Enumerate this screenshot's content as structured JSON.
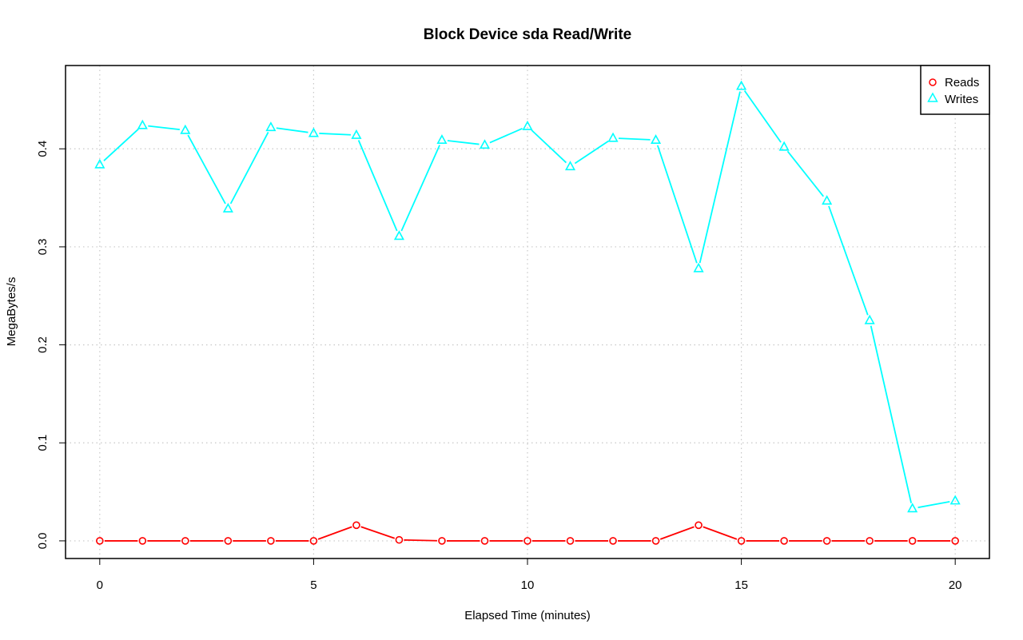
{
  "chart_data": {
    "type": "line",
    "title": "Block Device sda Read/Write",
    "xlabel": "Elapsed Time (minutes)",
    "ylabel": "MegaBytes/s",
    "xlim": [
      -0.8,
      20.8
    ],
    "ylim": [
      -0.018,
      0.485
    ],
    "xticks": [
      0,
      5,
      10,
      15,
      20
    ],
    "yticks": [
      0.0,
      0.1,
      0.2,
      0.3,
      0.4
    ],
    "ytick_labels": [
      "0.0",
      "0.1",
      "0.2",
      "0.3",
      "0.4"
    ],
    "grid": true,
    "legend_position": "top-right",
    "x": [
      0,
      1,
      2,
      3,
      4,
      5,
      6,
      7,
      8,
      9,
      10,
      11,
      12,
      13,
      14,
      15,
      16,
      17,
      18,
      19,
      20
    ],
    "series": [
      {
        "name": "Reads",
        "color": "#ff0000",
        "marker": "circle",
        "values": [
          0.0,
          0.0,
          0.0,
          0.0,
          0.0,
          0.0,
          0.016,
          0.001,
          0.0,
          0.0,
          0.0,
          0.0,
          0.0,
          0.0,
          0.016,
          0.0,
          0.0,
          0.0,
          0.0,
          0.0,
          0.0
        ]
      },
      {
        "name": "Writes",
        "color": "#00ffff",
        "marker": "triangle",
        "values": [
          0.384,
          0.424,
          0.419,
          0.339,
          0.422,
          0.416,
          0.414,
          0.311,
          0.409,
          0.404,
          0.423,
          0.382,
          0.411,
          0.409,
          0.278,
          0.464,
          0.402,
          0.347,
          0.225,
          0.033,
          0.041
        ]
      }
    ]
  }
}
